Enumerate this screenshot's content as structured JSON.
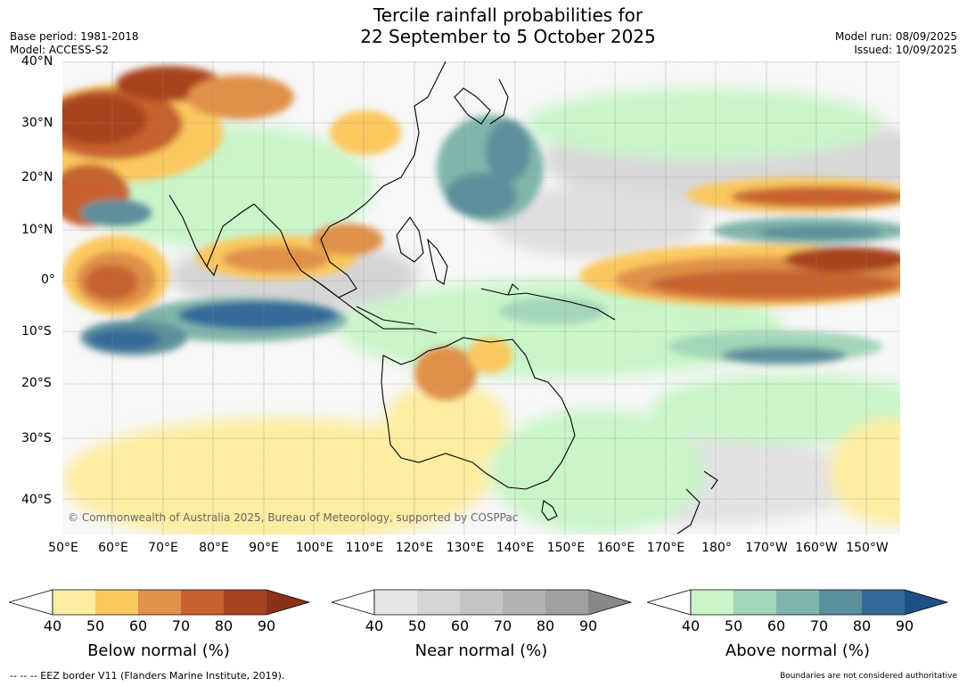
{
  "title": {
    "line1": "Tercile rainfall probabilities for",
    "line2": "22 September to 5 October 2025"
  },
  "meta_left": {
    "base_period": "Base period: 1981-2018",
    "model": "Model: ACCESS-S2"
  },
  "meta_right": {
    "model_run": "Model run: 08/09/2025",
    "issued": "Issued: 10/09/2025"
  },
  "lat_labels": [
    "40°N",
    "30°N",
    "20°N",
    "10°N",
    "0°",
    "10°S",
    "20°S",
    "30°S",
    "40°S"
  ],
  "lon_labels": [
    "50°E",
    "60°E",
    "70°E",
    "80°E",
    "90°E",
    "100°E",
    "110°E",
    "120°E",
    "130°E",
    "140°E",
    "150°E",
    "160°E",
    "170°E",
    "180°",
    "170°W",
    "160°W",
    "150°W"
  ],
  "copyright": "© Commonwealth of Australia 2025, Bureau of Meteorology, supported by COSPPac",
  "colorbars": {
    "below": {
      "title": "Below normal (%)",
      "ticks": [
        "40",
        "50",
        "60",
        "70",
        "80",
        "90"
      ],
      "colors": [
        "#fdeda0",
        "#fbc85f",
        "#e0914a",
        "#c8622f",
        "#a8431f",
        "#8a3118"
      ]
    },
    "near": {
      "title": "Near normal (%)",
      "ticks": [
        "40",
        "50",
        "60",
        "70",
        "80",
        "90"
      ],
      "colors": [
        "#e6e6e6",
        "#d5d5d5",
        "#c4c4c4",
        "#b2b2b2",
        "#a0a0a0",
        "#888888"
      ]
    },
    "above": {
      "title": "Above normal (%)",
      "ticks": [
        "40",
        "50",
        "60",
        "70",
        "80",
        "90"
      ],
      "colors": [
        "#c9f5c9",
        "#a3d6b8",
        "#80b5ac",
        "#5b8f9b",
        "#346a99",
        "#1e4f87"
      ]
    }
  },
  "footer": {
    "eez": "--  --  -- EEZ border V11 (Flanders Marine Institute, 2019).",
    "boundaries": "Boundaries are not considered authoritative"
  }
}
